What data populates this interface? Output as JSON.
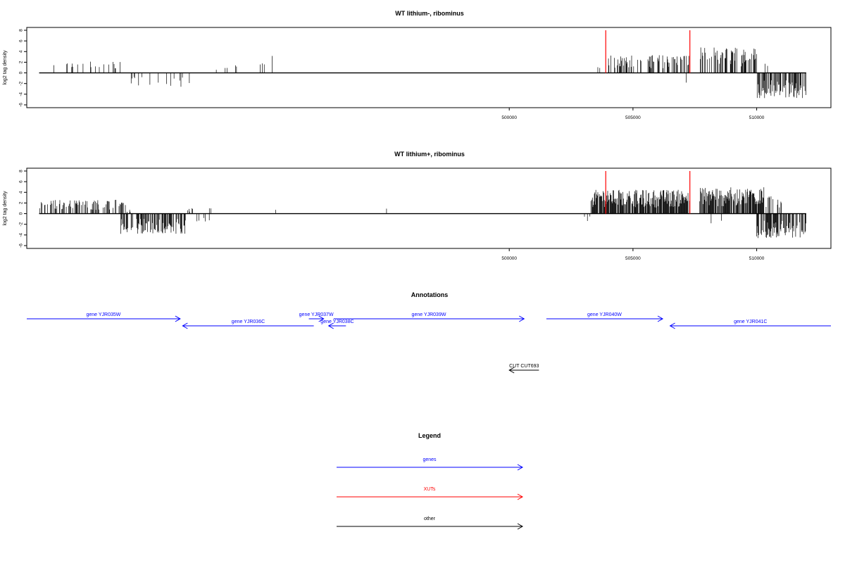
{
  "chart_data": [
    {
      "type": "bar",
      "title": "WT lithium-, ribominus",
      "ylabel": "log2 tag density",
      "xlabel": "",
      "xlim": [
        480500,
        513000
      ],
      "ylim": [
        -6,
        8
      ],
      "yticks": [
        "8",
        "6",
        "4",
        "2",
        "0",
        "-2",
        "-4",
        "-6"
      ],
      "xticks": [
        "500000",
        "505000",
        "510000"
      ],
      "baseline": {
        "x": [
          481000,
          512000
        ]
      },
      "markers": {
        "color": "#ff0000",
        "x": [
          503900,
          507300
        ],
        "height": 8
      },
      "series": [
        {
          "strand": "+",
          "segments": [
            [
              481200,
              484500,
              0.15,
              2.2
            ],
            [
              488000,
              489000,
              0.1,
              1.5
            ],
            [
              489500,
              490500,
              0.1,
              3.2
            ],
            [
              503300,
              503950,
              0.1,
              2.5
            ],
            [
              503950,
              507300,
              0.35,
              3.4
            ],
            [
              507300,
              507600,
              0.1,
              1.5
            ],
            [
              507700,
              510000,
              0.5,
              4.8
            ],
            [
              510200,
              510500,
              0.1,
              2.3
            ]
          ]
        },
        {
          "strand": "-",
          "segments": [
            [
              484600,
              487200,
              0.08,
              2.8
            ],
            [
              507150,
              507300,
              0.2,
              2.5
            ],
            [
              510000,
              512000,
              0.6,
              4.8
            ]
          ]
        }
      ]
    },
    {
      "type": "bar",
      "title": "WT lithium+, ribominus",
      "ylabel": "log2 tag density",
      "xlabel": "",
      "xlim": [
        480500,
        513000
      ],
      "ylim": [
        -6,
        8
      ],
      "yticks": [
        "8",
        "6",
        "4",
        "2",
        "0",
        "-2",
        "-4",
        "-6"
      ],
      "xticks": [
        "500000",
        "505000",
        "510000"
      ],
      "baseline": {
        "x": [
          481000,
          512000
        ]
      },
      "markers": {
        "color": "#ff0000",
        "x": [
          503900,
          507300
        ],
        "height": 8
      },
      "series": [
        {
          "strand": "+",
          "segments": [
            [
              481000,
              484500,
              0.35,
              2.6
            ],
            [
              484500,
              484700,
              0.2,
              0.8
            ],
            [
              487000,
              487200,
              0.2,
              1.0
            ],
            [
              487800,
              488000,
              0.2,
              1.2
            ],
            [
              488500,
              488600,
              0.2,
              1.0
            ],
            [
              490500,
              491000,
              0.1,
              1.8
            ],
            [
              495000,
              495100,
              0.2,
              1.2
            ],
            [
              503300,
              507300,
              0.85,
              4.5
            ],
            [
              507700,
              510300,
              0.85,
              5.0
            ],
            [
              510300,
              511000,
              0.35,
              3.3
            ]
          ]
        },
        {
          "strand": "-",
          "segments": [
            [
              484300,
              487000,
              0.6,
              3.8
            ],
            [
              487000,
              488000,
              0.08,
              1.5
            ],
            [
              503000,
              503300,
              0.2,
              1.5
            ],
            [
              507300,
              507400,
              0.2,
              2.3
            ],
            [
              507700,
              508800,
              0.08,
              2.2
            ],
            [
              510000,
              512000,
              0.75,
              4.6
            ]
          ]
        }
      ]
    }
  ],
  "annotations": {
    "title": "Annotations",
    "xlim": [
      480500,
      513000
    ],
    "features": [
      {
        "label": "gene YJR035W",
        "start": 480500,
        "end": 486700,
        "strand": "+",
        "row": 0,
        "color": "#0000ff"
      },
      {
        "label": "gene YJR036C",
        "start": 486800,
        "end": 492100,
        "strand": "-",
        "row": 1,
        "color": "#0000ff"
      },
      {
        "label": "gene YJR037W",
        "start": 491900,
        "end": 492500,
        "strand": "+",
        "row": 0,
        "color": "#0000ff"
      },
      {
        "label": "gene YJR038C",
        "start": 492700,
        "end": 493400,
        "strand": "-",
        "row": 1,
        "color": "#0000ff"
      },
      {
        "label": "gene YJR039W",
        "start": 492900,
        "end": 500600,
        "strand": "+",
        "row": 0,
        "color": "#0000ff"
      },
      {
        "label": "gene YJR040W",
        "start": 501500,
        "end": 506200,
        "strand": "+",
        "row": 0,
        "color": "#0000ff"
      },
      {
        "label": "gene YJR041C",
        "start": 506500,
        "end": 513000,
        "strand": "-",
        "row": 1,
        "color": "#0000ff"
      },
      {
        "label": "CUT CUT693",
        "start": 500000,
        "end": 501200,
        "strand": "-",
        "row": 3,
        "color": "#000000"
      }
    ]
  },
  "legend": {
    "title": "Legend",
    "items": [
      {
        "label": "genes",
        "color": "#0000ff"
      },
      {
        "label": "XUTs",
        "color": "#ff0000"
      },
      {
        "label": "other",
        "color": "#000000"
      }
    ]
  }
}
